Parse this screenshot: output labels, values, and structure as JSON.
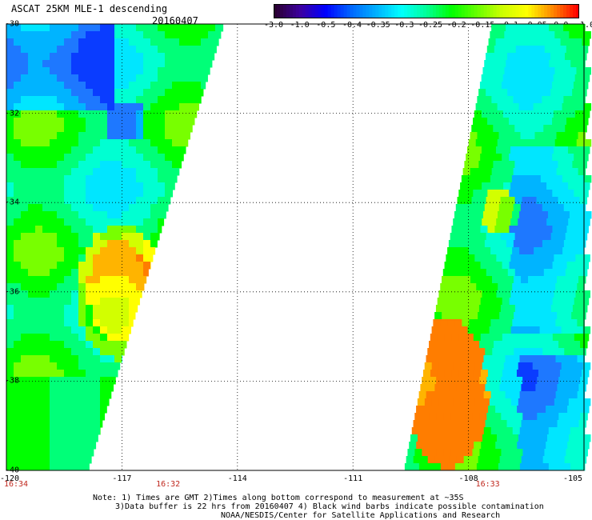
{
  "title": "ASCAT 25KM MLE-1 descending",
  "date": "20160407",
  "colorbar": {
    "labels": [
      "-3.0",
      "-1.0",
      "-0.5",
      "-0.4",
      "-0.35",
      "-0.3",
      "-0.25",
      "-0.2",
      "-0.15",
      "-0.1",
      "-0.05",
      "0.0",
      "1.0"
    ],
    "colors": [
      "#2a0030",
      "#3c00a0",
      "#0000ff",
      "#0066ff",
      "#00b0ff",
      "#00ffff",
      "#00ff99",
      "#00ff00",
      "#66ff00",
      "#ccff00",
      "#ffff00",
      "#ff8800",
      "#ff0000"
    ]
  },
  "axes": {
    "lat_labels": [
      "-30",
      "-32",
      "-34",
      "-36",
      "-38",
      "-40"
    ],
    "lat_values": [
      -30,
      -32,
      -34,
      -36,
      -38,
      -40
    ],
    "lon_labels": [
      "-120",
      "-117",
      "-114",
      "-111",
      "-108",
      "-105"
    ],
    "lon_values": [
      -120,
      -117,
      -114,
      -111,
      -108,
      -105
    ],
    "lon_range": [
      -120,
      -105
    ],
    "lat_range": [
      -40,
      -30
    ],
    "grid": "dotted"
  },
  "time_labels": [
    {
      "text": "16:34",
      "lon": -120
    },
    {
      "text": "16:32",
      "lon": -115.8
    },
    {
      "text": "16:33",
      "lon": -107.5
    }
  ],
  "notes": [
    "Note: 1) Times are GMT 2)Times along bottom correspond to measurement at ~35S",
    "3)Data buffer is 22 hrs from 20160407 4) Black wind barbs indicate possible contamination",
    "NOAA/NESDIS/Center for Satellite Applications and Research"
  ]
}
